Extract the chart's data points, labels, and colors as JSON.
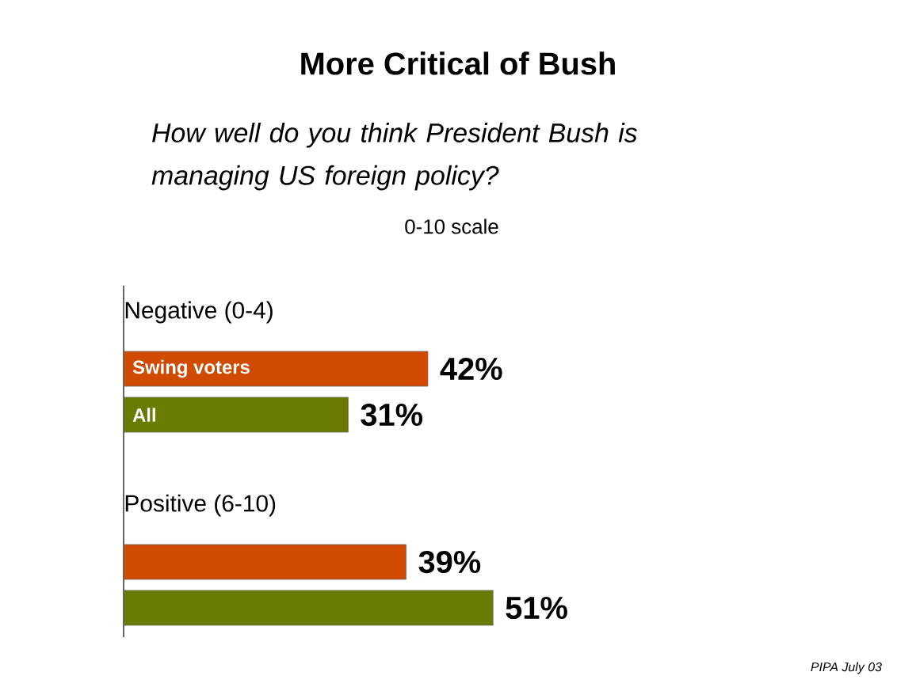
{
  "chart_data": {
    "type": "bar",
    "orientation": "horizontal",
    "title": "More Critical of Bush",
    "subtitle": "How well do you think President Bush is managing US foreign policy?",
    "annotations": [
      "0-10 scale",
      "PIPA July 03"
    ],
    "categories": [
      "Negative (0-4)",
      "Positive (6-10)"
    ],
    "series": [
      {
        "name": "Swing voters",
        "color": "#d04a02",
        "values": [
          42,
          39
        ],
        "value_labels": [
          "42%",
          "39%"
        ]
      },
      {
        "name": "All",
        "color": "#6b7a00",
        "values": [
          31,
          51
        ],
        "value_labels": [
          "31%",
          "51%"
        ]
      }
    ]
  }
}
